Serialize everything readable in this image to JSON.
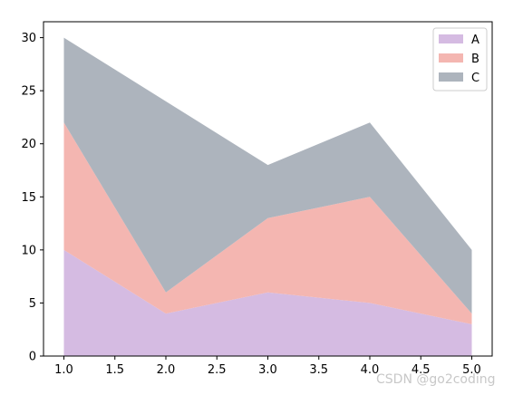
{
  "chart_data": {
    "type": "area",
    "stacked": true,
    "x": [
      1.0,
      2.0,
      3.0,
      4.0,
      5.0
    ],
    "series": [
      {
        "name": "A",
        "values": [
          10,
          4,
          6,
          5,
          3
        ],
        "color": "#d5bbe2"
      },
      {
        "name": "B",
        "values": [
          12,
          2,
          7,
          10,
          1
        ],
        "color": "#f4b6b1"
      },
      {
        "name": "C",
        "values": [
          8,
          18,
          5,
          7,
          6
        ],
        "color": "#adb4bd"
      }
    ],
    "xlim": [
      0.8,
      5.2
    ],
    "ylim": [
      0,
      31.5
    ],
    "xticks": [
      "1.0",
      "1.5",
      "2.0",
      "2.5",
      "3.0",
      "3.5",
      "4.0",
      "4.5",
      "5.0"
    ],
    "yticks": [
      "0",
      "5",
      "10",
      "15",
      "20",
      "25",
      "30"
    ],
    "grid": false,
    "legend": "top-right",
    "title": "",
    "xlabel": "",
    "ylabel": ""
  },
  "watermark": "CSDN @go2coding"
}
